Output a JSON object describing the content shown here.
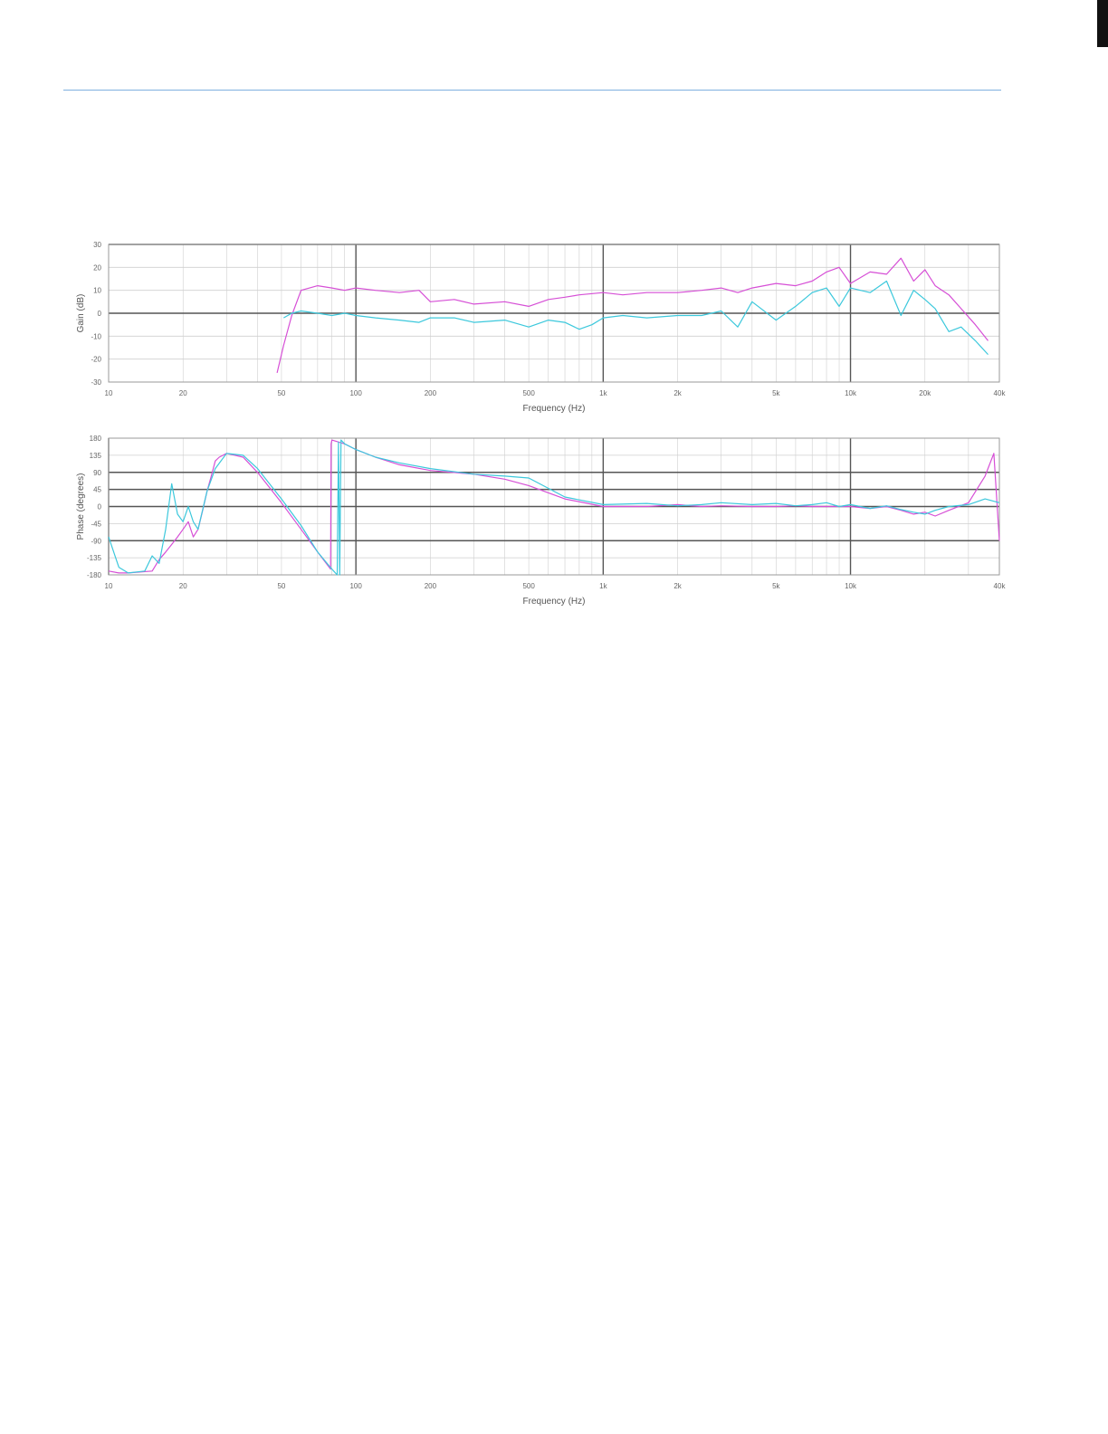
{
  "page": {
    "rule_color": "#7fb0e0"
  },
  "colors": {
    "series_a": "#d64fd6",
    "series_b": "#3cc8dc",
    "grid_major": "#555555",
    "grid_minor": "#cfcfcf",
    "frame": "#9a9a9a"
  },
  "chart_data": [
    {
      "type": "line",
      "xlabel": "Frequency (Hz)",
      "ylabel": "Gain (dB)",
      "xscale": "log",
      "xlim": [
        10,
        40000
      ],
      "ylim": [
        -30,
        30
      ],
      "x_ticks": [
        {
          "value": 10,
          "label": "10"
        },
        {
          "value": 20,
          "label": "20"
        },
        {
          "value": 50,
          "label": "50"
        },
        {
          "value": 100,
          "label": "100"
        },
        {
          "value": 200,
          "label": "200"
        },
        {
          "value": 500,
          "label": "500"
        },
        {
          "value": 1000,
          "label": "1k"
        },
        {
          "value": 2000,
          "label": "2k"
        },
        {
          "value": 5000,
          "label": "5k"
        },
        {
          "value": 10000,
          "label": "10k"
        },
        {
          "value": 20000,
          "label": "20k"
        },
        {
          "value": 40000,
          "label": "40k"
        }
      ],
      "y_ticks": [
        {
          "value": 30,
          "label": "30"
        },
        {
          "value": 20,
          "label": "20"
        },
        {
          "value": 10,
          "label": "10"
        },
        {
          "value": 0,
          "label": "0"
        },
        {
          "value": -10,
          "label": "-10"
        },
        {
          "value": -20,
          "label": "-20"
        },
        {
          "value": -30,
          "label": "-30"
        }
      ],
      "major_y": [
        30,
        0
      ],
      "major_x": [
        100,
        1000,
        10000
      ],
      "grid": true,
      "legend": "none",
      "series": [
        {
          "color": "#d64fd6",
          "x": [
            48,
            51,
            55,
            60,
            70,
            80,
            90,
            100,
            120,
            150,
            180,
            200,
            250,
            300,
            400,
            500,
            600,
            700,
            800,
            1000,
            1200,
            1500,
            2000,
            2500,
            3000,
            3500,
            4000,
            5000,
            6000,
            7000,
            8000,
            9000,
            10000,
            12000,
            14000,
            16000,
            18000,
            20000,
            22000,
            25000,
            28000,
            32000,
            36000
          ],
          "y": [
            -26,
            -14,
            -1,
            10,
            12,
            11,
            10,
            11,
            10,
            9,
            10,
            5,
            6,
            4,
            5,
            3,
            6,
            7,
            8,
            9,
            8,
            9,
            9,
            10,
            11,
            9,
            11,
            13,
            12,
            14,
            18,
            20,
            13,
            18,
            17,
            24,
            14,
            19,
            12,
            8,
            2,
            -5,
            -12
          ]
        },
        {
          "color": "#3cc8dc",
          "x": [
            51,
            55,
            60,
            70,
            80,
            90,
            100,
            120,
            150,
            180,
            200,
            250,
            300,
            400,
            500,
            600,
            700,
            800,
            900,
            1000,
            1200,
            1500,
            2000,
            2500,
            3000,
            3500,
            4000,
            5000,
            6000,
            7000,
            8000,
            9000,
            10000,
            12000,
            14000,
            16000,
            18000,
            20000,
            22000,
            25000,
            28000,
            32000,
            36000
          ],
          "y": [
            -2,
            0,
            1,
            0,
            -1,
            0,
            -1,
            -2,
            -3,
            -4,
            -2,
            -2,
            -4,
            -3,
            -6,
            -3,
            -4,
            -7,
            -5,
            -2,
            -1,
            -2,
            -1,
            -1,
            1,
            -6,
            5,
            -3,
            3,
            9,
            11,
            3,
            11,
            9,
            14,
            -1,
            10,
            6,
            2,
            -8,
            -6,
            -12,
            -18
          ]
        }
      ]
    },
    {
      "type": "line",
      "xlabel": "Frequency (Hz)",
      "ylabel": "Phase (degrees)",
      "xscale": "log",
      "xlim": [
        10,
        40000
      ],
      "ylim": [
        -180,
        180
      ],
      "x_ticks": [
        {
          "value": 10,
          "label": "10"
        },
        {
          "value": 20,
          "label": "20"
        },
        {
          "value": 50,
          "label": "50"
        },
        {
          "value": 100,
          "label": "100"
        },
        {
          "value": 200,
          "label": "200"
        },
        {
          "value": 500,
          "label": "500"
        },
        {
          "value": 1000,
          "label": "1k"
        },
        {
          "value": 2000,
          "label": "2k"
        },
        {
          "value": 5000,
          "label": "5k"
        },
        {
          "value": 10000,
          "label": "10k"
        },
        {
          "value": 40000,
          "label": "40k"
        }
      ],
      "y_ticks": [
        {
          "value": 180,
          "label": "180"
        },
        {
          "value": 135,
          "label": "135"
        },
        {
          "value": 90,
          "label": "90"
        },
        {
          "value": 45,
          "label": "45"
        },
        {
          "value": 0,
          "label": "0"
        },
        {
          "value": -45,
          "label": "-45"
        },
        {
          "value": -90,
          "label": "-90"
        },
        {
          "value": -135,
          "label": "-135"
        },
        {
          "value": -180,
          "label": "-180"
        }
      ],
      "major_y": [
        90,
        45,
        0,
        -90
      ],
      "major_x": [
        10,
        100,
        1000,
        10000
      ],
      "grid": true,
      "legend": "none",
      "series": [
        {
          "color": "#d64fd6",
          "x": [
            10,
            11,
            12,
            15,
            16,
            17,
            18,
            19,
            20,
            21,
            22,
            23,
            24,
            25,
            26,
            27,
            28,
            30,
            35,
            40,
            50,
            60,
            70,
            79,
            79.4,
            79.8,
            80,
            90,
            100,
            120,
            150,
            200,
            300,
            400,
            500,
            700,
            1000,
            1500,
            2000,
            2500,
            3000,
            4000,
            5000,
            6000,
            7000,
            8000,
            9000,
            10000,
            12000,
            14000,
            16000,
            18000,
            20000,
            22000,
            25000,
            30000,
            35000,
            38000,
            40000
          ],
          "y": [
            -170,
            -175,
            -175,
            -170,
            -140,
            -120,
            -100,
            -80,
            -60,
            -40,
            -80,
            -60,
            -10,
            40,
            80,
            120,
            130,
            140,
            130,
            90,
            10,
            -60,
            -120,
            -165,
            165,
            172,
            175,
            165,
            150,
            130,
            110,
            95,
            85,
            72,
            55,
            20,
            0,
            0,
            5,
            0,
            2,
            0,
            0,
            2,
            0,
            0,
            0,
            0,
            -5,
            0,
            -10,
            -20,
            -15,
            -25,
            -10,
            10,
            80,
            140,
            -90
          ]
        },
        {
          "color": "#3cc8dc",
          "x": [
            10,
            11,
            12,
            14,
            15,
            16,
            17,
            18,
            19,
            20,
            21,
            22,
            23,
            25,
            27,
            30,
            35,
            40,
            50,
            60,
            70,
            80,
            84,
            85,
            86,
            87,
            88,
            90,
            100,
            120,
            150,
            200,
            300,
            400,
            500,
            700,
            1000,
            1500,
            2000,
            2500,
            3000,
            4000,
            5000,
            6000,
            7000,
            8000,
            9000,
            10000,
            12000,
            14000,
            16000,
            18000,
            20000,
            22000,
            25000,
            30000,
            35000,
            40000
          ],
          "y": [
            -80,
            -160,
            -175,
            -170,
            -130,
            -150,
            -60,
            60,
            -20,
            -40,
            0,
            -40,
            -60,
            40,
            100,
            140,
            135,
            100,
            20,
            -50,
            -120,
            -165,
            -180,
            170,
            -180,
            175,
            172,
            165,
            150,
            130,
            115,
            100,
            85,
            80,
            75,
            25,
            5,
            8,
            2,
            5,
            10,
            5,
            8,
            2,
            5,
            10,
            0,
            5,
            -5,
            2,
            -8,
            -15,
            -20,
            -10,
            0,
            5,
            20,
            10
          ]
        }
      ]
    }
  ]
}
